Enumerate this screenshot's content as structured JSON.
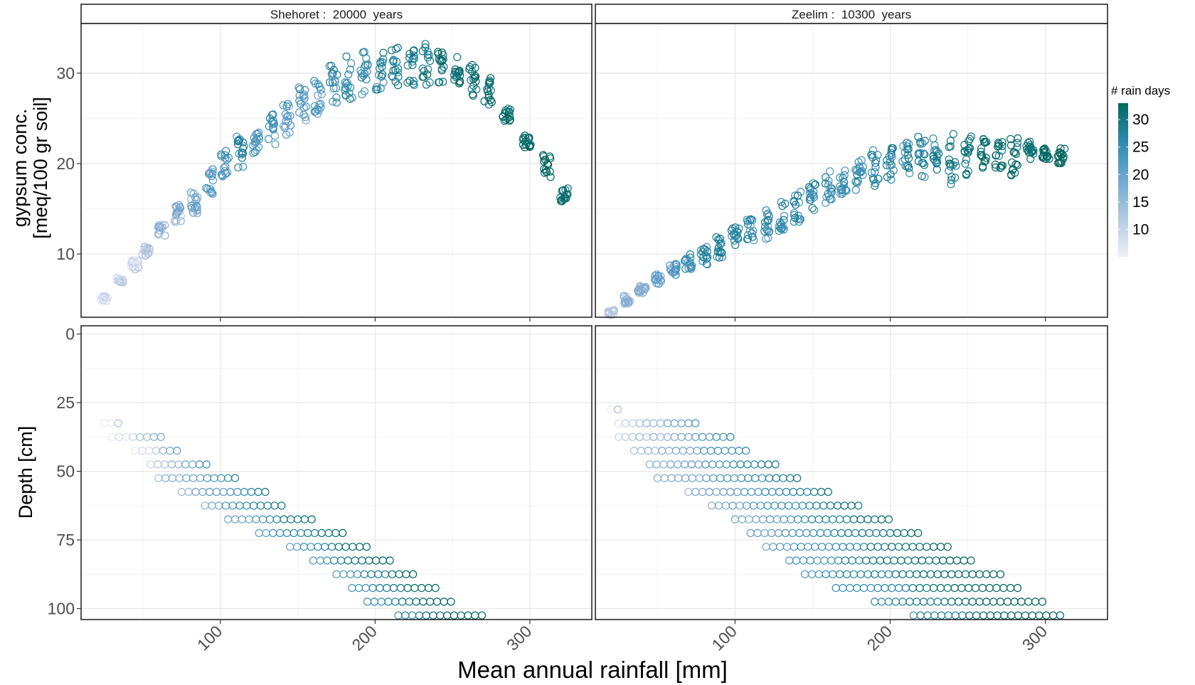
{
  "figure": {
    "xlabel": "Mean annual rainfall [mm]",
    "ylabel_top_line1": "gypsum conc.",
    "ylabel_top_line2": "[meq/100 gr soil]",
    "ylabel_bottom": "Depth [cm]",
    "legend_title": "# rain days",
    "legend_ticks": [
      "10",
      "15",
      "20",
      "25",
      "30"
    ],
    "colors": {
      "low": "#e8e7f2",
      "mid": "#4a9ac4",
      "high": "#00695c",
      "grid": "#ebebeb",
      "panel_border": "#333333"
    }
  },
  "chart_data": [
    {
      "type": "scatter",
      "panel": "Shehoret top",
      "strip_label": "Shehoret :  20000  years",
      "xlim": [
        10,
        340
      ],
      "ylim": [
        3,
        35.5
      ],
      "x_ticks": [
        100,
        200,
        300
      ],
      "y_ticks": [
        10,
        20,
        30
      ],
      "color_by": "# rain days",
      "clusters": [
        {
          "x": 25,
          "y": [
            4.7,
            5.4
          ],
          "days": 6
        },
        {
          "x": 35,
          "y": [
            6.8,
            7.4
          ],
          "days": 8
        },
        {
          "x": 45,
          "y": [
            8.3,
            9.4
          ],
          "days": 9
        },
        {
          "x": 52,
          "y": [
            9.6,
            10.8
          ],
          "days": 10
        },
        {
          "x": 62,
          "y": [
            12.0,
            13.3
          ],
          "days": 13
        },
        {
          "x": 72,
          "y": [
            13.5,
            15.5
          ],
          "days": 15
        },
        {
          "x": 83,
          "y": [
            14.5,
            17.0
          ],
          "days": 18
        },
        {
          "x": 93,
          "y": [
            16.5,
            19.5
          ],
          "days": 20
        },
        {
          "x": 103,
          "y": [
            18.5,
            21.5
          ],
          "days": 23
        },
        {
          "x": 113,
          "y": [
            19.5,
            23.0
          ],
          "days": 24
        },
        {
          "x": 123,
          "y": [
            21.0,
            24.0
          ],
          "days": 22
        },
        {
          "x": 133,
          "y": [
            22.0,
            25.5
          ],
          "days": 23
        },
        {
          "x": 143,
          "y": [
            23.0,
            27.0
          ],
          "days": 20
        },
        {
          "x": 153,
          "y": [
            24.5,
            28.5
          ],
          "days": 21
        },
        {
          "x": 163,
          "y": [
            25.5,
            29.5
          ],
          "days": 22
        },
        {
          "x": 173,
          "y": [
            26.5,
            31.0
          ],
          "days": 23
        },
        {
          "x": 183,
          "y": [
            27.0,
            32.0
          ],
          "days": 24
        },
        {
          "x": 193,
          "y": [
            27.5,
            32.5
          ],
          "days": 25
        },
        {
          "x": 203,
          "y": [
            28.0,
            32.8
          ],
          "days": 26
        },
        {
          "x": 213,
          "y": [
            28.5,
            33.0
          ],
          "days": 27
        },
        {
          "x": 223,
          "y": [
            28.5,
            33.2
          ],
          "days": 27
        },
        {
          "x": 233,
          "y": [
            28.5,
            33.3
          ],
          "days": 28
        },
        {
          "x": 243,
          "y": [
            28.8,
            32.5
          ],
          "days": 29
        },
        {
          "x": 253,
          "y": [
            28.5,
            31.8
          ],
          "days": 30
        },
        {
          "x": 263,
          "y": [
            27.5,
            31.0
          ],
          "days": 30
        },
        {
          "x": 273,
          "y": [
            26.5,
            29.5
          ],
          "days": 31
        },
        {
          "x": 285,
          "y": [
            24.5,
            26.2
          ],
          "days": 31
        },
        {
          "x": 298,
          "y": [
            21.8,
            23.2
          ],
          "days": 32
        },
        {
          "x": 311,
          "y": [
            18.2,
            21.0
          ],
          "days": 32
        },
        {
          "x": 322,
          "y": [
            15.8,
            17.6
          ],
          "days": 32
        }
      ]
    },
    {
      "type": "scatter",
      "panel": "Zeelim top",
      "strip_label": "Zeelim :  10300  years",
      "xlim": [
        10,
        340
      ],
      "ylim": [
        3,
        35.5
      ],
      "x_ticks": [
        100,
        200,
        300
      ],
      "y_ticks": [
        10,
        20,
        30
      ],
      "color_by": "# rain days",
      "clusters": [
        {
          "x": 20,
          "y": [
            3.2,
            3.8
          ],
          "days": 10
        },
        {
          "x": 30,
          "y": [
            4.5,
            5.4
          ],
          "days": 14
        },
        {
          "x": 40,
          "y": [
            5.5,
            6.5
          ],
          "days": 16
        },
        {
          "x": 50,
          "y": [
            6.5,
            7.8
          ],
          "days": 18
        },
        {
          "x": 60,
          "y": [
            7.5,
            9.0
          ],
          "days": 20
        },
        {
          "x": 70,
          "y": [
            8.3,
            10.0
          ],
          "days": 22
        },
        {
          "x": 80,
          "y": [
            8.8,
            11.0
          ],
          "days": 24
        },
        {
          "x": 90,
          "y": [
            9.5,
            12.0
          ],
          "days": 26
        },
        {
          "x": 100,
          "y": [
            10.5,
            13.0
          ],
          "days": 25
        },
        {
          "x": 110,
          "y": [
            11.0,
            14.0
          ],
          "days": 24
        },
        {
          "x": 120,
          "y": [
            11.5,
            15.0
          ],
          "days": 23
        },
        {
          "x": 130,
          "y": [
            12.5,
            16.0
          ],
          "days": 24
        },
        {
          "x": 140,
          "y": [
            13.5,
            17.0
          ],
          "days": 25
        },
        {
          "x": 150,
          "y": [
            14.5,
            18.0
          ],
          "days": 24
        },
        {
          "x": 160,
          "y": [
            15.5,
            19.2
          ],
          "days": 23
        },
        {
          "x": 170,
          "y": [
            16.5,
            20.0
          ],
          "days": 22
        },
        {
          "x": 180,
          "y": [
            17.0,
            20.8
          ],
          "days": 24
        },
        {
          "x": 190,
          "y": [
            17.5,
            21.5
          ],
          "days": 25
        },
        {
          "x": 200,
          "y": [
            18.0,
            22.0
          ],
          "days": 24
        },
        {
          "x": 210,
          "y": [
            18.5,
            22.5
          ],
          "days": 25
        },
        {
          "x": 220,
          "y": [
            18.5,
            23.0
          ],
          "days": 26
        },
        {
          "x": 230,
          "y": [
            18.0,
            23.3
          ],
          "days": 27
        },
        {
          "x": 240,
          "y": [
            17.5,
            23.5
          ],
          "days": 28
        },
        {
          "x": 250,
          "y": [
            18.5,
            23.0
          ],
          "days": 29
        },
        {
          "x": 260,
          "y": [
            19.5,
            23.0
          ],
          "days": 30
        },
        {
          "x": 270,
          "y": [
            19.5,
            22.5
          ],
          "days": 30
        },
        {
          "x": 280,
          "y": [
            18.5,
            23.0
          ],
          "days": 31
        },
        {
          "x": 290,
          "y": [
            20.5,
            22.5
          ],
          "days": 31
        },
        {
          "x": 300,
          "y": [
            20.5,
            21.8
          ],
          "days": 32
        },
        {
          "x": 310,
          "y": [
            20.0,
            21.7
          ],
          "days": 32
        }
      ]
    },
    {
      "type": "scatter",
      "panel": "Shehoret bottom",
      "xlim": [
        10,
        340
      ],
      "ylim": [
        104,
        -3
      ],
      "x_ticks": [
        100,
        200,
        300
      ],
      "y_ticks": [
        0,
        25,
        50,
        75,
        100
      ],
      "color_by": "# rain days",
      "rows": [
        {
          "depth": 32.5,
          "x_from": 25,
          "x_to": 35,
          "days": 6
        },
        {
          "depth": 37.5,
          "x_from": 30,
          "x_to": 62,
          "days": 12
        },
        {
          "depth": 42.5,
          "x_from": 45,
          "x_to": 72,
          "days": 12
        },
        {
          "depth": 47.5,
          "x_from": 55,
          "x_to": 93,
          "days": 16
        },
        {
          "depth": 52.5,
          "x_from": 60,
          "x_to": 113,
          "days": 20
        },
        {
          "depth": 57.5,
          "x_from": 75,
          "x_to": 133,
          "days": 22
        },
        {
          "depth": 62.5,
          "x_from": 90,
          "x_to": 143,
          "days": 24
        },
        {
          "depth": 67.5,
          "x_from": 105,
          "x_to": 163,
          "days": 26
        },
        {
          "depth": 72.5,
          "x_from": 125,
          "x_to": 183,
          "days": 27
        },
        {
          "depth": 77.5,
          "x_from": 145,
          "x_to": 198,
          "days": 27
        },
        {
          "depth": 82.5,
          "x_from": 160,
          "x_to": 210,
          "days": 28
        },
        {
          "depth": 87.5,
          "x_from": 175,
          "x_to": 228,
          "days": 28
        },
        {
          "depth": 92.5,
          "x_from": 185,
          "x_to": 240,
          "days": 29
        },
        {
          "depth": 97.5,
          "x_from": 195,
          "x_to": 253,
          "days": 30
        },
        {
          "depth": 102.5,
          "x_from": 215,
          "x_to": 270,
          "days": 31
        }
      ]
    },
    {
      "type": "scatter",
      "panel": "Zeelim bottom",
      "xlim": [
        10,
        340
      ],
      "ylim": [
        104,
        -3
      ],
      "x_ticks": [
        100,
        200,
        300
      ],
      "y_ticks": [
        0,
        25,
        50,
        75,
        100
      ],
      "color_by": "# rain days",
      "rows": [
        {
          "depth": 27.5,
          "x_from": 20,
          "x_to": 27,
          "days": 10
        },
        {
          "depth": 32.5,
          "x_from": 25,
          "x_to": 75,
          "days": 16
        },
        {
          "depth": 37.5,
          "x_from": 25,
          "x_to": 100,
          "days": 18
        },
        {
          "depth": 42.5,
          "x_from": 35,
          "x_to": 110,
          "days": 20
        },
        {
          "depth": 47.5,
          "x_from": 45,
          "x_to": 130,
          "days": 22
        },
        {
          "depth": 52.5,
          "x_from": 50,
          "x_to": 140,
          "days": 22
        },
        {
          "depth": 57.5,
          "x_from": 70,
          "x_to": 160,
          "days": 23
        },
        {
          "depth": 62.5,
          "x_from": 85,
          "x_to": 180,
          "days": 24
        },
        {
          "depth": 67.5,
          "x_from": 100,
          "x_to": 200,
          "days": 25
        },
        {
          "depth": 72.5,
          "x_from": 110,
          "x_to": 218,
          "days": 26
        },
        {
          "depth": 77.5,
          "x_from": 120,
          "x_to": 240,
          "days": 27
        },
        {
          "depth": 82.5,
          "x_from": 135,
          "x_to": 255,
          "days": 28
        },
        {
          "depth": 87.5,
          "x_from": 145,
          "x_to": 272,
          "days": 29
        },
        {
          "depth": 92.5,
          "x_from": 165,
          "x_to": 285,
          "days": 30
        },
        {
          "depth": 97.5,
          "x_from": 190,
          "x_to": 300,
          "days": 31
        },
        {
          "depth": 102.5,
          "x_from": 215,
          "x_to": 310,
          "days": 32
        }
      ]
    }
  ]
}
